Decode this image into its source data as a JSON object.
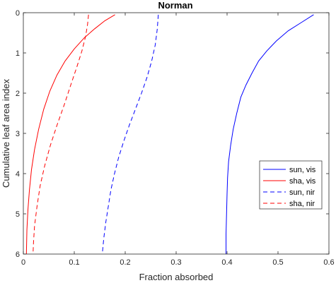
{
  "chart_data": {
    "type": "line",
    "title": "Norman",
    "xlabel": "Fraction absorbed",
    "ylabel": "Cumulative leaf area index",
    "xlim": [
      0,
      0.6
    ],
    "ylim": [
      0,
      6
    ],
    "y_reversed": true,
    "x_axis_location": "bottom",
    "xticks": [
      0,
      0.1,
      0.2,
      0.3,
      0.4,
      0.5,
      0.6
    ],
    "xtick_labels": [
      "0",
      "0.1",
      "0.2",
      "0.3",
      "0.4",
      "0.5",
      "0.6"
    ],
    "yticks": [
      0,
      1,
      2,
      3,
      4,
      5,
      6
    ],
    "ytick_labels": [
      "0",
      "1",
      "2",
      "3",
      "4",
      "5",
      "6"
    ],
    "grid": false,
    "legend_position": "right",
    "series": [
      {
        "name": "sun, vis",
        "color": "#0000ff",
        "dash": "solid",
        "points": [
          [
            0.57,
            0.05
          ],
          [
            0.545,
            0.25
          ],
          [
            0.52,
            0.45
          ],
          [
            0.497,
            0.7
          ],
          [
            0.478,
            0.95
          ],
          [
            0.462,
            1.2
          ],
          [
            0.449,
            1.5
          ],
          [
            0.437,
            1.8
          ],
          [
            0.427,
            2.1
          ],
          [
            0.419,
            2.5
          ],
          [
            0.412,
            2.9
          ],
          [
            0.407,
            3.3
          ],
          [
            0.403,
            3.7
          ],
          [
            0.401,
            4.1
          ],
          [
            0.4,
            4.5
          ],
          [
            0.399,
            5.0
          ],
          [
            0.398,
            5.5
          ],
          [
            0.398,
            6.0
          ]
        ]
      },
      {
        "name": "sha, vis",
        "color": "#ff0000",
        "dash": "solid",
        "points": [
          [
            0.18,
            0.05
          ],
          [
            0.16,
            0.2
          ],
          [
            0.14,
            0.4
          ],
          [
            0.12,
            0.62
          ],
          [
            0.1,
            0.9
          ],
          [
            0.082,
            1.2
          ],
          [
            0.066,
            1.55
          ],
          [
            0.052,
            1.95
          ],
          [
            0.04,
            2.4
          ],
          [
            0.03,
            2.9
          ],
          [
            0.022,
            3.4
          ],
          [
            0.016,
            3.9
          ],
          [
            0.012,
            4.4
          ],
          [
            0.009,
            4.9
          ],
          [
            0.007,
            5.4
          ],
          [
            0.006,
            6.0
          ]
        ]
      },
      {
        "name": "sun, nir",
        "color": "#0000ff",
        "dash": "dashed",
        "points": [
          [
            0.265,
            0.05
          ],
          [
            0.263,
            0.4
          ],
          [
            0.259,
            0.8
          ],
          [
            0.252,
            1.2
          ],
          [
            0.243,
            1.6
          ],
          [
            0.232,
            2.0
          ],
          [
            0.22,
            2.4
          ],
          [
            0.208,
            2.8
          ],
          [
            0.197,
            3.2
          ],
          [
            0.187,
            3.6
          ],
          [
            0.179,
            4.0
          ],
          [
            0.172,
            4.4
          ],
          [
            0.167,
            4.8
          ],
          [
            0.162,
            5.2
          ],
          [
            0.158,
            5.6
          ],
          [
            0.155,
            6.0
          ]
        ]
      },
      {
        "name": "sha, nir",
        "color": "#ff0000",
        "dash": "dashed",
        "points": [
          [
            0.128,
            0.05
          ],
          [
            0.126,
            0.3
          ],
          [
            0.122,
            0.6
          ],
          [
            0.115,
            0.95
          ],
          [
            0.105,
            1.35
          ],
          [
            0.093,
            1.8
          ],
          [
            0.08,
            2.3
          ],
          [
            0.066,
            2.8
          ],
          [
            0.053,
            3.3
          ],
          [
            0.042,
            3.8
          ],
          [
            0.033,
            4.3
          ],
          [
            0.027,
            4.8
          ],
          [
            0.022,
            5.3
          ],
          [
            0.02,
            5.7
          ],
          [
            0.019,
            6.0
          ]
        ]
      }
    ]
  }
}
